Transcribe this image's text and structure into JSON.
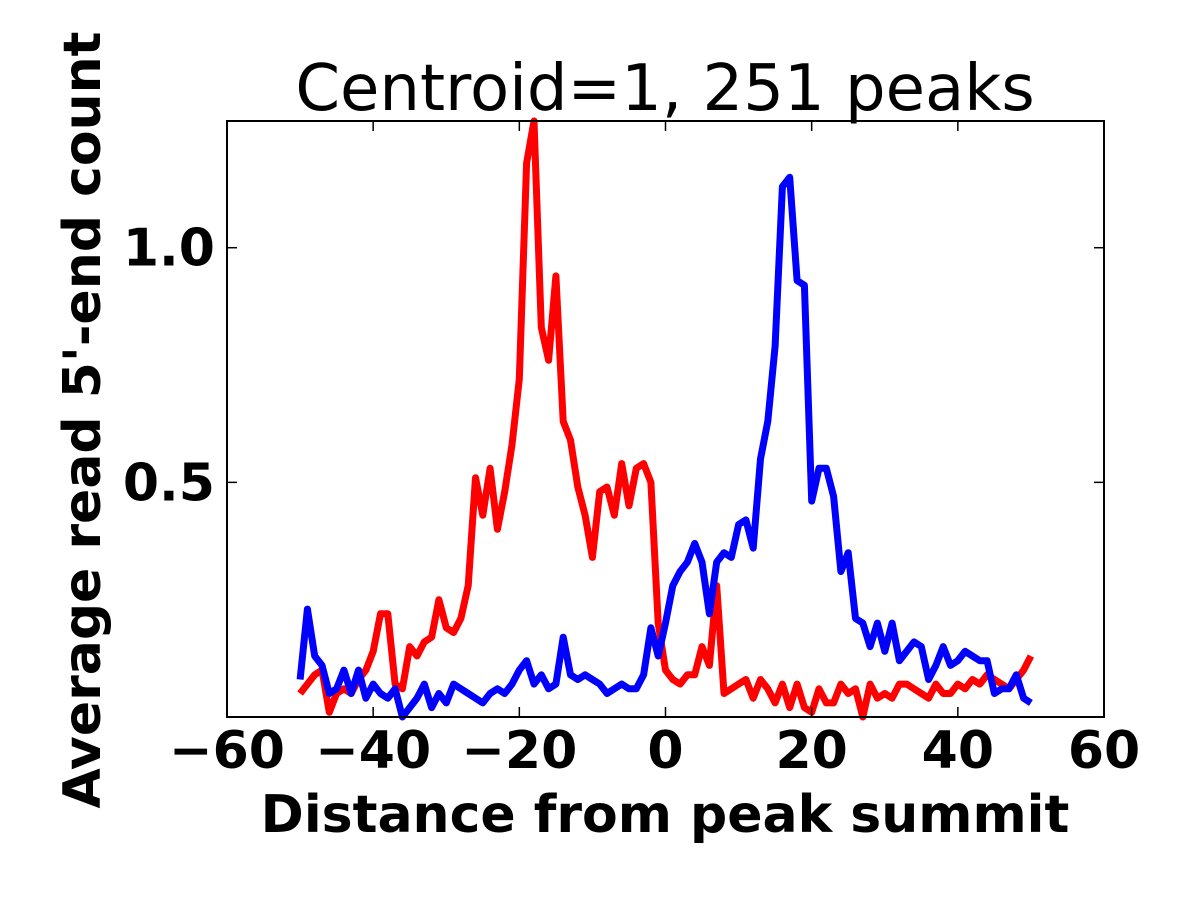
{
  "chart_data": {
    "type": "line",
    "title": "Centroid=1, 251 peaks",
    "xlabel": "Distance from peak summit",
    "ylabel": "Average read 5'-end count",
    "xlim": [
      -60,
      60
    ],
    "ylim": [
      0.0,
      1.27
    ],
    "xticks": [
      -60,
      -40,
      -20,
      0,
      20,
      40,
      60
    ],
    "xtick_labels": [
      "−60",
      "−40",
      "−20",
      "0",
      "20",
      "40",
      "60"
    ],
    "yticks": [
      0.5,
      1.0
    ],
    "ytick_labels": [
      "0.5",
      "1.0"
    ],
    "grid": false,
    "x": [
      -50,
      -49,
      -48,
      -47,
      -46,
      -45,
      -44,
      -43,
      -42,
      -41,
      -40,
      -39,
      -38,
      -37,
      -36,
      -35,
      -34,
      -33,
      -32,
      -31,
      -30,
      -29,
      -28,
      -27,
      -26,
      -25,
      -24,
      -23,
      -22,
      -21,
      -20,
      -19,
      -18,
      -17,
      -16,
      -15,
      -14,
      -13,
      -12,
      -11,
      -10,
      -9,
      -8,
      -7,
      -6,
      -5,
      -4,
      -3,
      -2,
      -1,
      0,
      1,
      2,
      3,
      4,
      5,
      6,
      7,
      8,
      9,
      10,
      11,
      12,
      13,
      14,
      15,
      16,
      17,
      18,
      19,
      20,
      21,
      22,
      23,
      24,
      25,
      26,
      27,
      28,
      29,
      30,
      31,
      32,
      33,
      34,
      35,
      36,
      37,
      38,
      39,
      40,
      41,
      42,
      43,
      44,
      45,
      46,
      47,
      48,
      49,
      50
    ],
    "series": [
      {
        "color": "#ff0000",
        "values": [
          0.05,
          0.07,
          0.09,
          0.1,
          0.01,
          0.05,
          0.06,
          0.05,
          0.08,
          0.1,
          0.14,
          0.22,
          0.22,
          0.07,
          0.06,
          0.15,
          0.13,
          0.16,
          0.17,
          0.25,
          0.19,
          0.18,
          0.21,
          0.28,
          0.51,
          0.43,
          0.53,
          0.4,
          0.48,
          0.58,
          0.72,
          1.18,
          1.27,
          0.83,
          0.76,
          0.94,
          0.63,
          0.59,
          0.49,
          0.43,
          0.34,
          0.48,
          0.49,
          0.43,
          0.54,
          0.45,
          0.53,
          0.54,
          0.5,
          0.2,
          0.1,
          0.08,
          0.07,
          0.09,
          0.09,
          0.15,
          0.11,
          0.28,
          0.05,
          0.06,
          0.07,
          0.08,
          0.04,
          0.08,
          0.06,
          0.03,
          0.07,
          0.02,
          0.07,
          0.02,
          0.01,
          0.06,
          0.03,
          0.03,
          0.07,
          0.05,
          0.06,
          0.0,
          0.07,
          0.04,
          0.05,
          0.04,
          0.07,
          0.07,
          0.06,
          0.05,
          0.04,
          0.07,
          0.05,
          0.05,
          0.07,
          0.06,
          0.08,
          0.07,
          0.09,
          0.08,
          0.07,
          0.06,
          0.08,
          0.1,
          0.13
        ]
      },
      {
        "color": "#0000ff",
        "values": [
          0.08,
          0.23,
          0.13,
          0.11,
          0.05,
          0.06,
          0.1,
          0.05,
          0.1,
          0.04,
          0.07,
          0.05,
          0.04,
          0.06,
          0.0,
          0.02,
          0.04,
          0.07,
          0.02,
          0.05,
          0.03,
          0.07,
          0.06,
          0.05,
          0.04,
          0.03,
          0.05,
          0.06,
          0.05,
          0.07,
          0.1,
          0.12,
          0.07,
          0.09,
          0.06,
          0.07,
          0.17,
          0.09,
          0.08,
          0.09,
          0.08,
          0.07,
          0.05,
          0.06,
          0.07,
          0.06,
          0.06,
          0.09,
          0.19,
          0.13,
          0.2,
          0.28,
          0.31,
          0.33,
          0.37,
          0.33,
          0.22,
          0.33,
          0.35,
          0.34,
          0.41,
          0.42,
          0.36,
          0.55,
          0.63,
          0.79,
          1.13,
          1.15,
          0.93,
          0.92,
          0.46,
          0.53,
          0.53,
          0.47,
          0.31,
          0.35,
          0.21,
          0.2,
          0.15,
          0.2,
          0.14,
          0.2,
          0.12,
          0.14,
          0.16,
          0.15,
          0.08,
          0.11,
          0.15,
          0.11,
          0.12,
          0.14,
          0.13,
          0.12,
          0.12,
          0.05,
          0.06,
          0.06,
          0.09,
          0.04,
          0.03
        ]
      }
    ]
  }
}
